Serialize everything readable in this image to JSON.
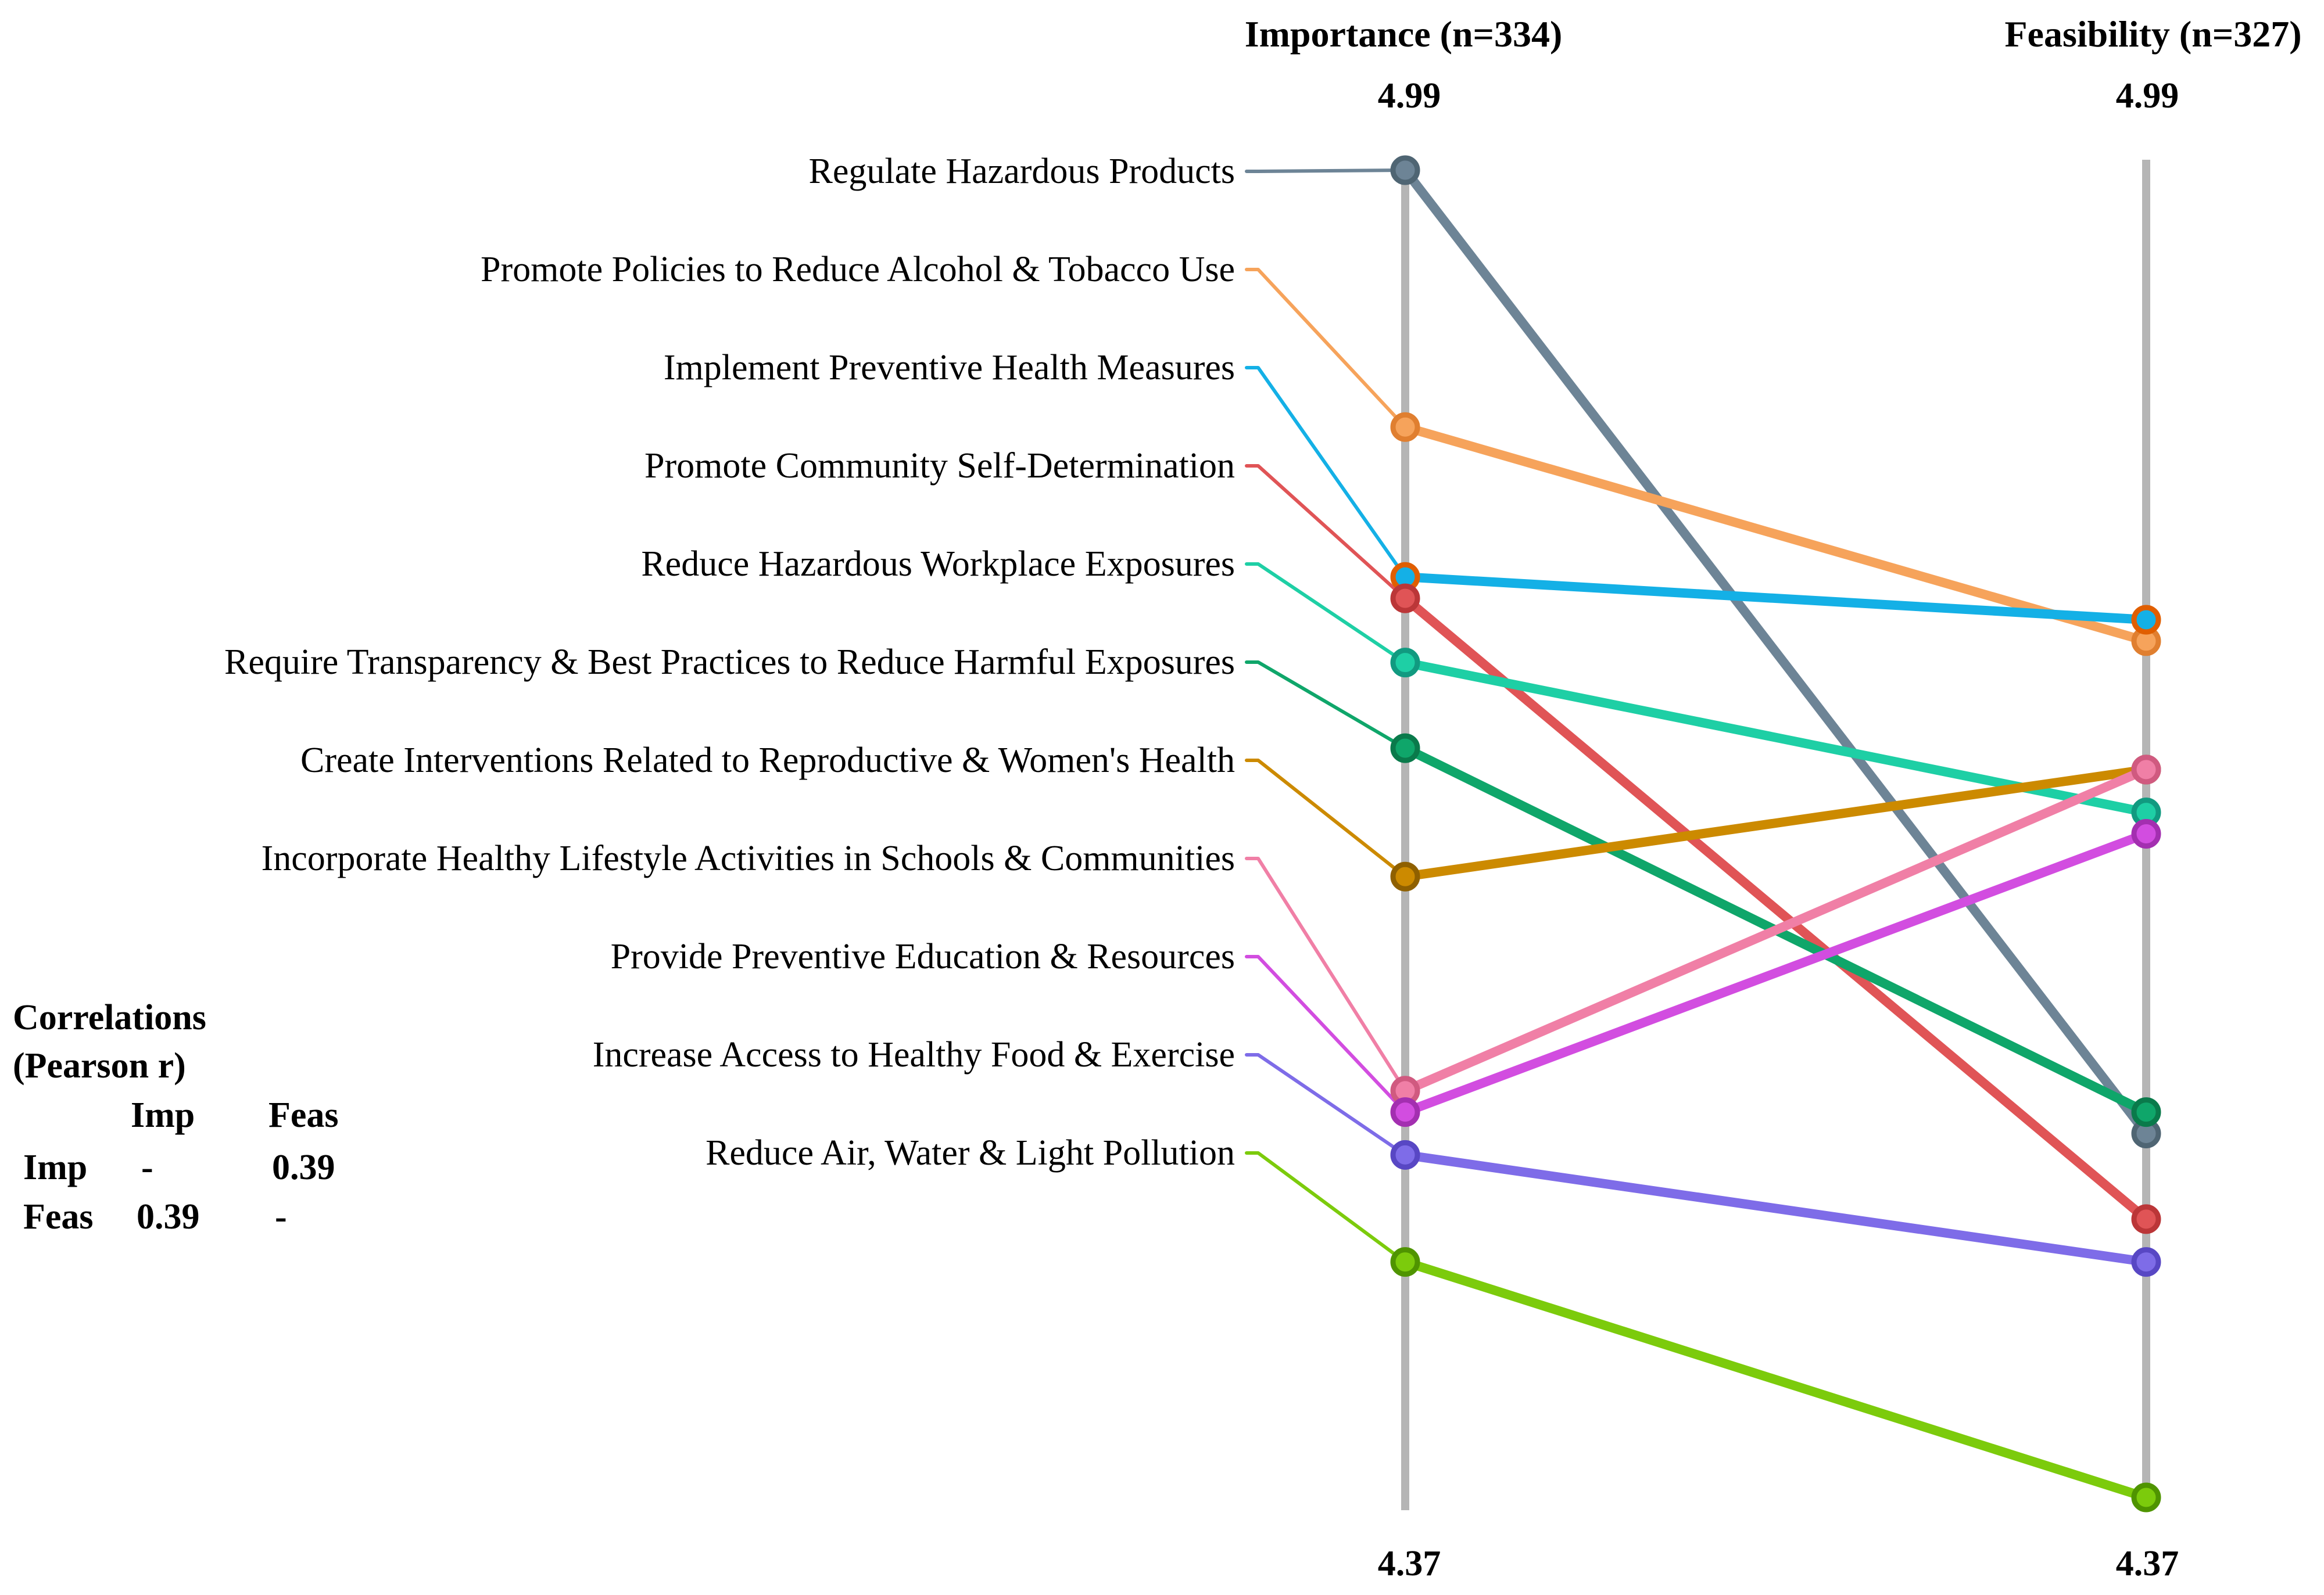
{
  "chart_data": {
    "type": "line",
    "subtype": "slope",
    "axes": [
      {
        "key": "imp",
        "title": "Importance (n=334)",
        "max_label": "4.99",
        "min_label": "4.37"
      },
      {
        "key": "feas",
        "title": "Feasibility (n=327)",
        "max_label": "4.99",
        "min_label": "4.37"
      }
    ],
    "ylim": [
      4.37,
      4.99
    ],
    "series": [
      {
        "name": "Regulate Hazardous Products",
        "imp": 4.99,
        "feas": 4.54,
        "color": "#6d8496",
        "dark": "#4f6573"
      },
      {
        "name": "Promote Policies to Reduce Alcohol & Tobacco Use",
        "imp": 4.87,
        "feas": 4.77,
        "color": "#f6a35b",
        "dark": "#e07f30"
      },
      {
        "name": "Implement Preventive Health Measures",
        "imp": 4.8,
        "feas": 4.78,
        "color": "#14b0e6",
        "dark": "#e05e00"
      },
      {
        "name": "Promote Community Self-Determination",
        "imp": 4.79,
        "feas": 4.5,
        "color": "#e05456",
        "dark": "#bb3638"
      },
      {
        "name": "Reduce Hazardous Workplace Exposures",
        "imp": 4.76,
        "feas": 4.69,
        "color": "#1ecfa5",
        "dark": "#119a80"
      },
      {
        "name": "Require Transparency & Best Practices to Reduce Harmful Exposures",
        "imp": 4.72,
        "feas": 4.55,
        "color": "#0fa66a",
        "dark": "#0a7a4b"
      },
      {
        "name": "Create Interventions Related to Reproductive & Women's Health",
        "imp": 4.66,
        "feas": 4.71,
        "color": "#cc8a00",
        "dark": "#8f6000"
      },
      {
        "name": "Incorporate Healthy Lifestyle Activities in Schools & Communities",
        "imp": 4.56,
        "feas": 4.71,
        "color": "#f07fa6",
        "dark": "#d05a80"
      },
      {
        "name": "Provide Preventive Education & Resources",
        "imp": 4.55,
        "feas": 4.68,
        "color": "#d24de0",
        "dark": "#a32fb0"
      },
      {
        "name": "Increase Access to Healthy Food & Exercise",
        "imp": 4.53,
        "feas": 4.48,
        "color": "#7e6ce8",
        "dark": "#5847c4"
      },
      {
        "name": "Reduce Air, Water & Light Pollution",
        "imp": 4.48,
        "feas": 4.37,
        "color": "#7ccb0c",
        "dark": "#4f9400"
      }
    ]
  },
  "correlations": {
    "title_line1": "Correlations",
    "title_line2": "(Pearson r)",
    "col_headers": [
      "Imp",
      "Feas"
    ],
    "rows": [
      {
        "label": "Imp",
        "values": [
          "-",
          "0.39"
        ]
      },
      {
        "label": "Feas",
        "values": [
          "0.39",
          "-"
        ]
      }
    ]
  },
  "colors": {
    "axis_line": "#b5b5b5"
  }
}
